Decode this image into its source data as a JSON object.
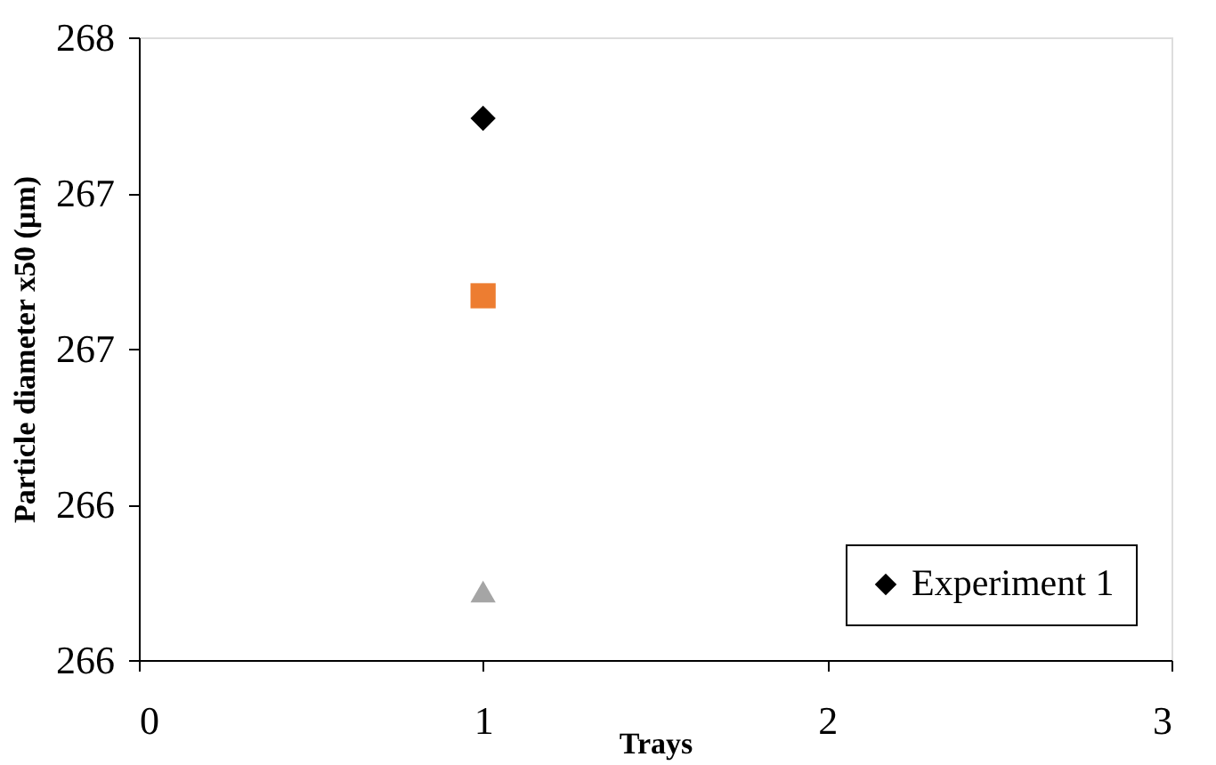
{
  "chart_data": {
    "type": "scatter",
    "xlabel": "Trays",
    "ylabel": "Particle diameter x50 (µm)",
    "x": [
      1
    ],
    "series": [
      {
        "name": "Experiment 1",
        "color": "#000000",
        "marker": "diamond",
        "values": [
          267.74
        ]
      },
      {
        "color": "#ed7d31",
        "marker": "square",
        "values": [
          267.17
        ]
      },
      {
        "color": "#a5a5a5",
        "marker": "triangle",
        "values": [
          266.22
        ]
      }
    ],
    "xlim": [
      0,
      3
    ],
    "xticks": [
      0,
      1,
      2,
      3
    ],
    "ylim": [
      266,
      268
    ],
    "yticks": [
      {
        "value": 266,
        "label": "266"
      },
      {
        "value": 266.5,
        "label": "266"
      },
      {
        "value": 267,
        "label": "267"
      },
      {
        "value": 267.5,
        "label": "267"
      },
      {
        "value": 268,
        "label": "268"
      }
    ],
    "grid": false,
    "legend": "bottom right"
  }
}
